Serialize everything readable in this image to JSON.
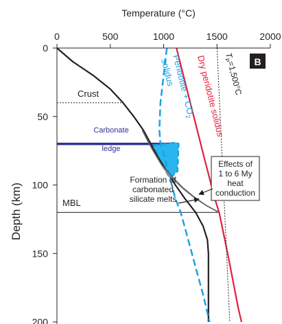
{
  "chart_data": {
    "type": "line",
    "title": "",
    "xlabel": "Temperature  (°C)",
    "ylabel": "Depth (km)",
    "xlim": [
      0,
      2000
    ],
    "ylim": [
      0,
      200
    ],
    "y_inverted": true,
    "x_axis_position": "top",
    "x_ticks": [
      0,
      500,
      1000,
      1500,
      2000
    ],
    "y_ticks": [
      0,
      50,
      100,
      150,
      200
    ],
    "panel_label": "B",
    "series": [
      {
        "key": "geotherm",
        "color": "#231f20",
        "style": "solid",
        "points": [
          [
            0,
            0
          ],
          [
            150,
            10
          ],
          [
            340,
            20
          ],
          [
            500,
            30
          ],
          [
            620,
            40
          ],
          [
            720,
            50
          ],
          [
            810,
            60
          ],
          [
            880,
            70
          ],
          [
            950,
            80
          ],
          [
            1030,
            90
          ],
          [
            1110,
            100
          ],
          [
            1200,
            110
          ],
          [
            1300,
            120
          ],
          [
            1370,
            130
          ],
          [
            1410,
            140
          ],
          [
            1420,
            150
          ],
          [
            1420,
            200
          ]
        ]
      },
      {
        "name": "Peridotite + CO₂ solidus",
        "color": "#1ba1e2",
        "style": "dashed",
        "points": [
          [
            1030,
            0
          ],
          [
            1000,
            20
          ],
          [
            970,
            40
          ],
          [
            960,
            60
          ],
          [
            970,
            70
          ],
          [
            1010,
            80
          ],
          [
            1060,
            95
          ],
          [
            1110,
            110
          ],
          [
            1160,
            120
          ],
          [
            1230,
            140
          ],
          [
            1300,
            160
          ],
          [
            1370,
            180
          ],
          [
            1430,
            200
          ]
        ]
      },
      {
        "name": "Dry peridotite solidus",
        "color": "#e31e3c",
        "style": "solid",
        "points": [
          [
            1120,
            0
          ],
          [
            1250,
            40
          ],
          [
            1380,
            80
          ],
          [
            1480,
            110
          ],
          [
            1520,
            120
          ],
          [
            1600,
            150
          ],
          [
            1700,
            190
          ],
          [
            1730,
            200
          ]
        ]
      },
      {
        "name": "T_P = 1,500 °C",
        "color": "#231f20",
        "style": "dotted",
        "points": [
          [
            1500,
            0
          ],
          [
            1620,
            200
          ]
        ]
      },
      {
        "key": "conduction-1",
        "color": "#9d9fa2",
        "style": "solid",
        "points": [
          [
            800,
            60
          ],
          [
            900,
            75
          ],
          [
            1000,
            88
          ],
          [
            1100,
            97
          ],
          [
            1200,
            104
          ],
          [
            1300,
            110
          ],
          [
            1400,
            115
          ],
          [
            1520,
            120
          ]
        ]
      },
      {
        "key": "conduction-2",
        "color": "#58595b",
        "style": "solid",
        "points": [
          [
            800,
            60
          ],
          [
            880,
            72
          ],
          [
            980,
            85
          ],
          [
            1080,
            94
          ],
          [
            1180,
            102
          ],
          [
            1290,
            109
          ],
          [
            1400,
            115
          ],
          [
            1520,
            120
          ]
        ]
      }
    ],
    "regions": [
      {
        "name": "carbonated-melt",
        "color": "#29b6ef",
        "points": [
          [
            900,
            71
          ],
          [
            1120,
            69
          ],
          [
            1140,
            70
          ],
          [
            1130,
            90
          ],
          [
            1060,
            95
          ],
          [
            990,
            86
          ],
          [
            950,
            80
          ]
        ]
      }
    ],
    "reference_lines": [
      {
        "label": "Crust",
        "depth": 40,
        "x_from": 0,
        "x_to": 620,
        "style": "dotted"
      },
      {
        "label": "MBL",
        "depth": 120,
        "x_from": 0,
        "x_to": 1520,
        "style": "solid"
      },
      {
        "label": "Carbonate ledge",
        "depth": 70,
        "x_from": 0,
        "x_to": 1140,
        "style": "thick",
        "color": "#2e3192"
      }
    ],
    "annotations": [
      {
        "text": "Formation of carbonated silicate melts",
        "lines": [
          "Formation of",
          "carbonated",
          "silicate melts"
        ]
      },
      {
        "text": "Effects of 1 to 6 My heat conduction",
        "lines": [
          "Effects of",
          "1 to 6 My",
          "heat",
          "conduction"
        ]
      },
      {
        "text": "Carbonate ledge",
        "lines": [
          "Carbonate",
          "ledge"
        ]
      }
    ],
    "curve_labels": {
      "peridotite_co2": "Peridotite + CO",
      "peridotite_co2_line2": "solidus",
      "dry_solidus": "Dry peridotite solidus",
      "tp_main": "T",
      "tp_sub": "P",
      "tp_value": "=1,500°C"
    }
  }
}
